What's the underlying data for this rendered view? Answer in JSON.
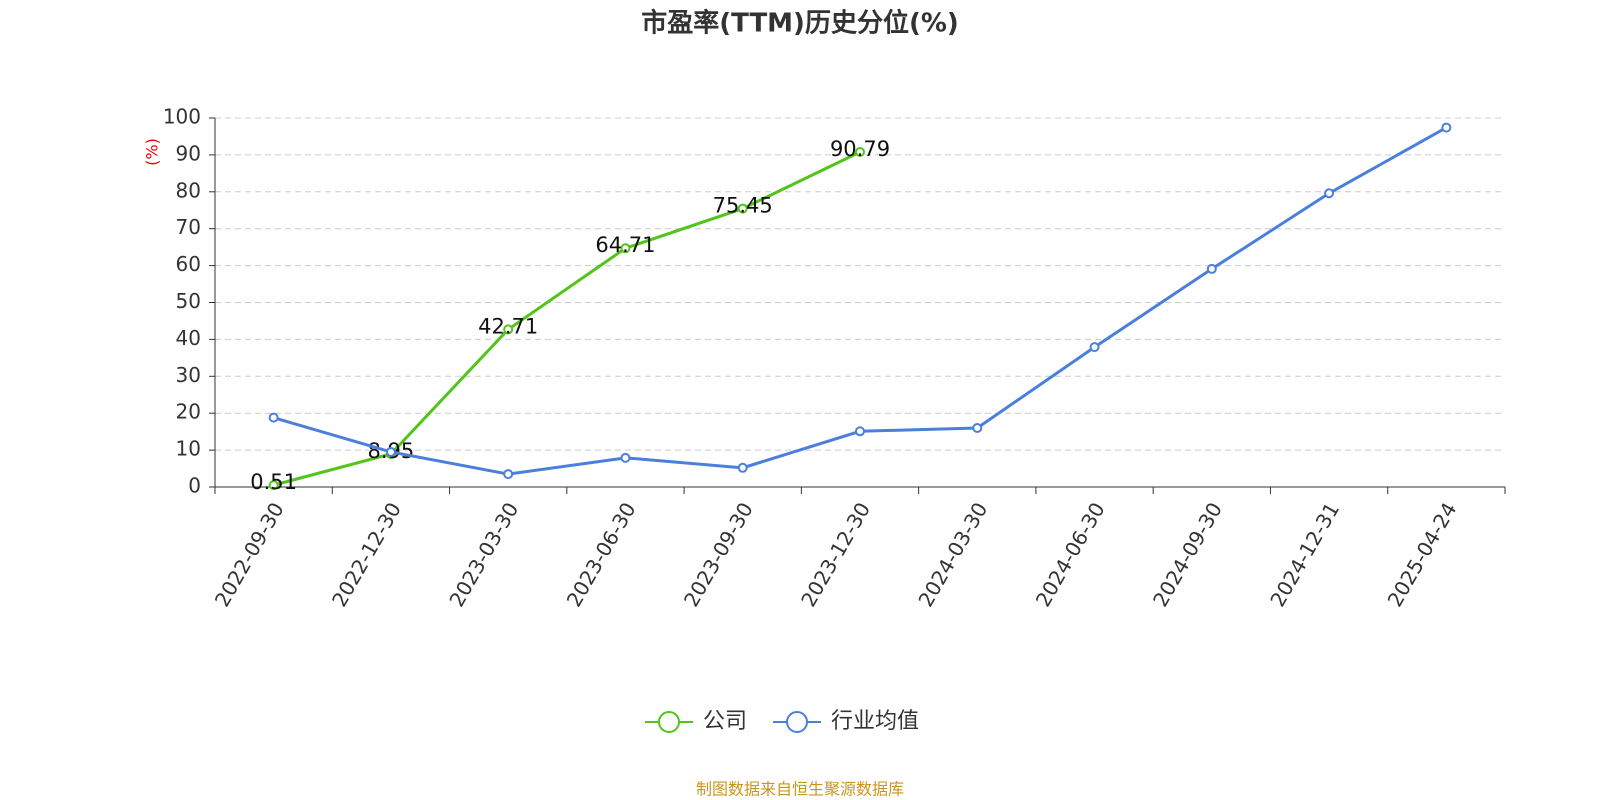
{
  "chart_data": {
    "type": "line",
    "title": "市盈率(TTM)历史分位(%)",
    "y_label": "(%)",
    "categories": [
      "2022-09-30",
      "2022-12-30",
      "2023-03-30",
      "2023-06-30",
      "2023-09-30",
      "2023-12-30",
      "2024-03-30",
      "2024-06-30",
      "2024-09-30",
      "2024-12-31",
      "2025-04-24"
    ],
    "series": [
      {
        "name": "公司",
        "color": "#52c41a",
        "values": [
          0.51,
          8.95,
          42.71,
          64.71,
          75.45,
          90.79,
          null,
          null,
          null,
          null,
          null
        ],
        "show_labels": true
      },
      {
        "name": "行业均值",
        "color": "#4a7fdb",
        "values": [
          18.8,
          9.5,
          3.5,
          7.9,
          5.2,
          15.1,
          16.0,
          37.9,
          59.1,
          79.6,
          97.4
        ],
        "show_labels": false
      }
    ],
    "ylim": [
      0,
      100
    ],
    "yticks": [
      0,
      10,
      20,
      30,
      40,
      50,
      60,
      70,
      80,
      90,
      100
    ],
    "grid": true,
    "source": "制图数据来自恒生聚源数据库"
  }
}
